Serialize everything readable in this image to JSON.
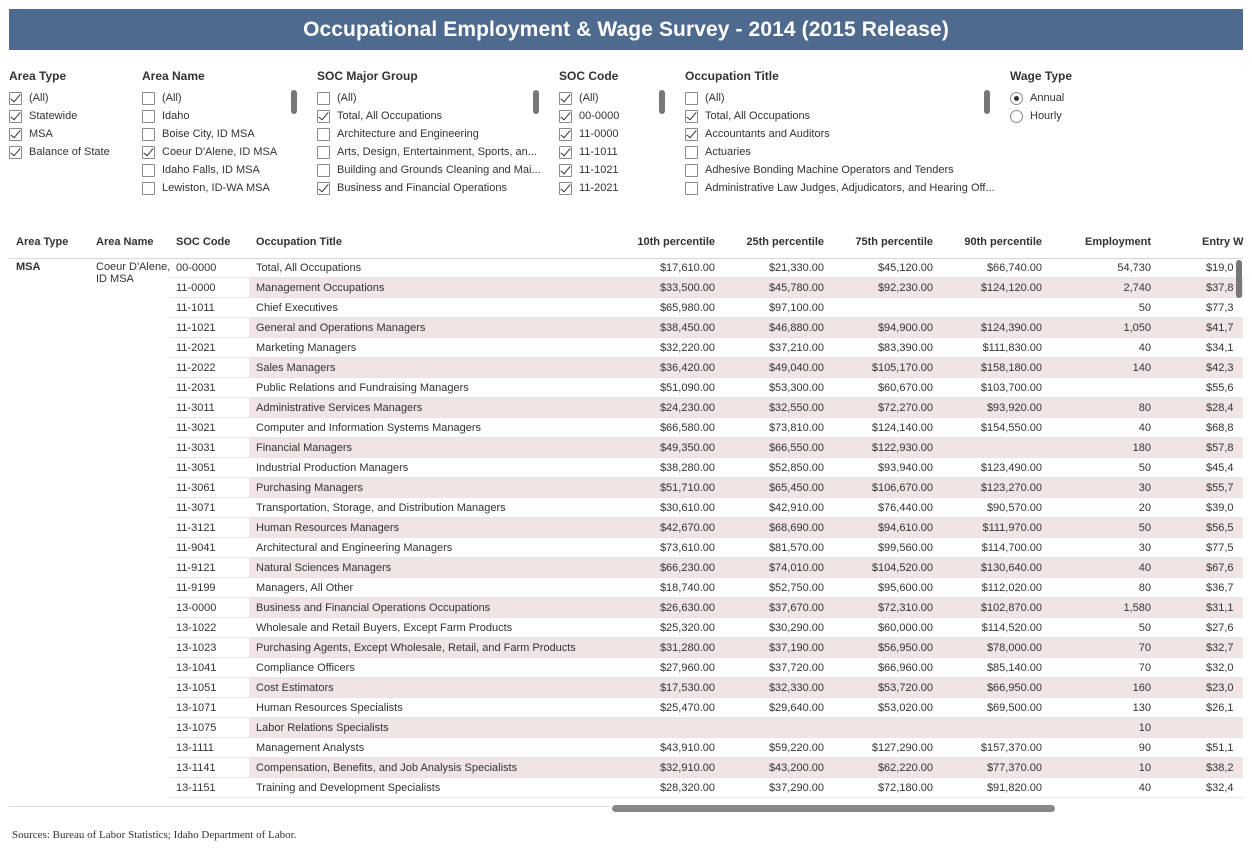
{
  "title": "Occupational Employment & Wage Survey - 2014 (2015 Release)",
  "filters": {
    "area_type": {
      "title": "Area Type",
      "options": [
        {
          "label": "(All)",
          "checked": true
        },
        {
          "label": "Statewide",
          "checked": true
        },
        {
          "label": "MSA",
          "checked": true
        },
        {
          "label": "Balance of State",
          "checked": true
        }
      ]
    },
    "area_name": {
      "title": "Area Name",
      "options": [
        {
          "label": "(All)",
          "checked": false
        },
        {
          "label": "Idaho",
          "checked": false
        },
        {
          "label": "Boise City, ID MSA",
          "checked": false
        },
        {
          "label": "Coeur D'Alene, ID MSA",
          "checked": true
        },
        {
          "label": "Idaho Falls, ID MSA",
          "checked": false
        },
        {
          "label": "Lewiston, ID-WA MSA",
          "checked": false
        }
      ]
    },
    "soc_major_group": {
      "title": "SOC Major Group",
      "options": [
        {
          "label": "(All)",
          "checked": false
        },
        {
          "label": "Total, All Occupations",
          "checked": true
        },
        {
          "label": "Architecture and Engineering",
          "checked": false
        },
        {
          "label": "Arts, Design, Entertainment, Sports, an...",
          "checked": false
        },
        {
          "label": "Building and Grounds Cleaning and Mai...",
          "checked": false
        },
        {
          "label": "Business and Financial Operations",
          "checked": true
        }
      ]
    },
    "soc_code": {
      "title": "SOC Code",
      "options": [
        {
          "label": "(All)",
          "checked": true
        },
        {
          "label": "00-0000",
          "checked": true
        },
        {
          "label": "11-0000",
          "checked": true
        },
        {
          "label": "11-1011",
          "checked": true
        },
        {
          "label": "11-1021",
          "checked": true
        },
        {
          "label": "11-2021",
          "checked": true
        }
      ]
    },
    "occupation_title": {
      "title": "Occupation Title",
      "options": [
        {
          "label": "(All)",
          "checked": false
        },
        {
          "label": "Total, All Occupations",
          "checked": true
        },
        {
          "label": "Accountants and Auditors",
          "checked": true
        },
        {
          "label": "Actuaries",
          "checked": false
        },
        {
          "label": "Adhesive Bonding Machine Operators and Tenders",
          "checked": false
        },
        {
          "label": "Administrative Law Judges, Adjudicators, and Hearing Off...",
          "checked": false
        }
      ]
    },
    "wage_type": {
      "title": "Wage Type",
      "options": [
        {
          "label": "Annual",
          "checked": true
        },
        {
          "label": "Hourly",
          "checked": false
        }
      ]
    }
  },
  "table": {
    "headers": {
      "area_type": "Area Type",
      "area_name": "Area Name",
      "soc_code": "SOC Code",
      "occupation_title": "Occupation Title",
      "p10": "10th percentile",
      "p25": "25th percentile",
      "p75": "75th percentile",
      "p90": "90th percentile",
      "employment": "Employment",
      "entry": "Entry W"
    },
    "group_area_type": "MSA",
    "group_area_name": "Coeur D'Alene, ID MSA",
    "rows": [
      {
        "soc": "00-0000",
        "title": "Total, All Occupations",
        "p10": "$17,610.00",
        "p25": "$21,330.00",
        "p75": "$45,120.00",
        "p90": "$66,740.00",
        "emp": "54,730",
        "entry": "$19,0"
      },
      {
        "soc": "11-0000",
        "title": "Management Occupations",
        "p10": "$33,500.00",
        "p25": "$45,780.00",
        "p75": "$92,230.00",
        "p90": "$124,120.00",
        "emp": "2,740",
        "entry": "$37,8"
      },
      {
        "soc": "11-1011",
        "title": "Chief Executives",
        "p10": "$65,980.00",
        "p25": "$97,100.00",
        "p75": "",
        "p90": "",
        "emp": "50",
        "entry": "$77,3"
      },
      {
        "soc": "11-1021",
        "title": "General and Operations Managers",
        "p10": "$38,450.00",
        "p25": "$46,880.00",
        "p75": "$94,900.00",
        "p90": "$124,390.00",
        "emp": "1,050",
        "entry": "$41,7"
      },
      {
        "soc": "11-2021",
        "title": "Marketing Managers",
        "p10": "$32,220.00",
        "p25": "$37,210.00",
        "p75": "$83,390.00",
        "p90": "$111,830.00",
        "emp": "40",
        "entry": "$34,1"
      },
      {
        "soc": "11-2022",
        "title": "Sales Managers",
        "p10": "$36,420.00",
        "p25": "$49,040.00",
        "p75": "$105,170.00",
        "p90": "$158,180.00",
        "emp": "140",
        "entry": "$42,3"
      },
      {
        "soc": "11-2031",
        "title": "Public Relations and Fundraising Managers",
        "p10": "$51,090.00",
        "p25": "$53,300.00",
        "p75": "$60,670.00",
        "p90": "$103,700.00",
        "emp": "",
        "entry": "$55,6"
      },
      {
        "soc": "11-3011",
        "title": "Administrative Services Managers",
        "p10": "$24,230.00",
        "p25": "$32,550.00",
        "p75": "$72,270.00",
        "p90": "$93,920.00",
        "emp": "80",
        "entry": "$28,4"
      },
      {
        "soc": "11-3021",
        "title": "Computer and Information Systems Managers",
        "p10": "$66,580.00",
        "p25": "$73,810.00",
        "p75": "$124,140.00",
        "p90": "$154,550.00",
        "emp": "40",
        "entry": "$68,8"
      },
      {
        "soc": "11-3031",
        "title": "Financial Managers",
        "p10": "$49,350.00",
        "p25": "$66,550.00",
        "p75": "$122,930.00",
        "p90": "",
        "emp": "180",
        "entry": "$57,8"
      },
      {
        "soc": "11-3051",
        "title": "Industrial Production Managers",
        "p10": "$38,280.00",
        "p25": "$52,850.00",
        "p75": "$93,940.00",
        "p90": "$123,490.00",
        "emp": "50",
        "entry": "$45,4"
      },
      {
        "soc": "11-3061",
        "title": "Purchasing Managers",
        "p10": "$51,710.00",
        "p25": "$65,450.00",
        "p75": "$106,670.00",
        "p90": "$123,270.00",
        "emp": "30",
        "entry": "$55,7"
      },
      {
        "soc": "11-3071",
        "title": "Transportation, Storage, and Distribution Managers",
        "p10": "$30,610.00",
        "p25": "$42,910.00",
        "p75": "$76,440.00",
        "p90": "$90,570.00",
        "emp": "20",
        "entry": "$39,0"
      },
      {
        "soc": "11-3121",
        "title": "Human Resources Managers",
        "p10": "$42,670.00",
        "p25": "$68,690.00",
        "p75": "$94,610.00",
        "p90": "$111,970.00",
        "emp": "50",
        "entry": "$56,5"
      },
      {
        "soc": "11-9041",
        "title": "Architectural and Engineering Managers",
        "p10": "$73,610.00",
        "p25": "$81,570.00",
        "p75": "$99,560.00",
        "p90": "$114,700.00",
        "emp": "30",
        "entry": "$77,5"
      },
      {
        "soc": "11-9121",
        "title": "Natural Sciences Managers",
        "p10": "$66,230.00",
        "p25": "$74,010.00",
        "p75": "$104,520.00",
        "p90": "$130,640.00",
        "emp": "40",
        "entry": "$67,6"
      },
      {
        "soc": "11-9199",
        "title": "Managers, All Other",
        "p10": "$18,740.00",
        "p25": "$52,750.00",
        "p75": "$95,600.00",
        "p90": "$112,020.00",
        "emp": "80",
        "entry": "$36,7"
      },
      {
        "soc": "13-0000",
        "title": "Business and Financial Operations Occupations",
        "p10": "$26,630.00",
        "p25": "$37,670.00",
        "p75": "$72,310.00",
        "p90": "$102,870.00",
        "emp": "1,580",
        "entry": "$31,1"
      },
      {
        "soc": "13-1022",
        "title": "Wholesale and Retail Buyers, Except Farm Products",
        "p10": "$25,320.00",
        "p25": "$30,290.00",
        "p75": "$60,000.00",
        "p90": "$114,520.00",
        "emp": "50",
        "entry": "$27,6"
      },
      {
        "soc": "13-1023",
        "title": "Purchasing Agents, Except Wholesale, Retail, and Farm Products",
        "p10": "$31,280.00",
        "p25": "$37,190.00",
        "p75": "$56,950.00",
        "p90": "$78,000.00",
        "emp": "70",
        "entry": "$32,7"
      },
      {
        "soc": "13-1041",
        "title": "Compliance Officers",
        "p10": "$27,960.00",
        "p25": "$37,720.00",
        "p75": "$66,960.00",
        "p90": "$85,140.00",
        "emp": "70",
        "entry": "$32,0"
      },
      {
        "soc": "13-1051",
        "title": "Cost Estimators",
        "p10": "$17,530.00",
        "p25": "$32,330.00",
        "p75": "$53,720.00",
        "p90": "$66,950.00",
        "emp": "160",
        "entry": "$23,0"
      },
      {
        "soc": "13-1071",
        "title": "Human Resources Specialists",
        "p10": "$25,470.00",
        "p25": "$29,640.00",
        "p75": "$53,020.00",
        "p90": "$69,500.00",
        "emp": "130",
        "entry": "$26,1"
      },
      {
        "soc": "13-1075",
        "title": "Labor Relations Specialists",
        "p10": "",
        "p25": "",
        "p75": "",
        "p90": "",
        "emp": "10",
        "entry": ""
      },
      {
        "soc": "13-1111",
        "title": "Management Analysts",
        "p10": "$43,910.00",
        "p25": "$59,220.00",
        "p75": "$127,290.00",
        "p90": "$157,370.00",
        "emp": "90",
        "entry": "$51,1"
      },
      {
        "soc": "13-1141",
        "title": "Compensation, Benefits, and Job Analysis Specialists",
        "p10": "$32,910.00",
        "p25": "$43,200.00",
        "p75": "$62,220.00",
        "p90": "$77,370.00",
        "emp": "10",
        "entry": "$38,2"
      },
      {
        "soc": "13-1151",
        "title": "Training and Development Specialists",
        "p10": "$28,320.00",
        "p25": "$37,290.00",
        "p75": "$72,180.00",
        "p90": "$91,820.00",
        "emp": "40",
        "entry": "$32,4"
      }
    ]
  },
  "footer": "Sources: Bureau of Labor Statistics; Idaho Department of Labor."
}
